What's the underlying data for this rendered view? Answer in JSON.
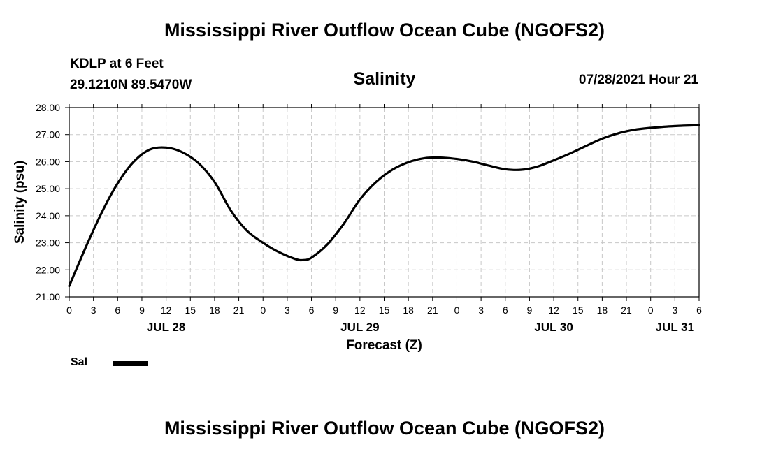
{
  "header": {
    "title": "Mississippi River Outflow Ocean Cube (NGOFS2)",
    "station_line1": "KDLP at 6 Feet",
    "station_line2": "29.1210N  89.5470W",
    "subtitle": "Salinity",
    "datetime": "07/28/2021 Hour 21"
  },
  "footer": {
    "title": "Mississippi River Outflow Ocean Cube (NGOFS2)"
  },
  "legend": {
    "label": "Sal",
    "color": "#000000"
  },
  "chart_data": {
    "type": "line",
    "title": "Salinity",
    "xlabel": "Forecast (Z)",
    "ylabel": "Salinity (psu)",
    "xlim": [
      0,
      78
    ],
    "ylim": [
      21,
      28
    ],
    "yticks": [
      "21.00",
      "22.00",
      "23.00",
      "24.00",
      "25.00",
      "26.00",
      "27.00",
      "28.00"
    ],
    "xtick_labels": [
      "0",
      "3",
      "6",
      "9",
      "12",
      "15",
      "18",
      "21",
      "0",
      "3",
      "6",
      "9",
      "12",
      "15",
      "18",
      "21",
      "0",
      "3",
      "6",
      "9",
      "12",
      "15",
      "18",
      "21",
      "0",
      "3",
      "6"
    ],
    "day_labels": [
      {
        "label": "JUL 28",
        "hour": 12
      },
      {
        "label": "JUL 29",
        "hour": 36
      },
      {
        "label": "JUL 30",
        "hour": 60
      },
      {
        "label": "JUL 31",
        "hour": 75
      }
    ],
    "grid": true,
    "series": [
      {
        "name": "Sal",
        "color": "#000000",
        "x": [
          0,
          2,
          4,
          6,
          8,
          10,
          12,
          14,
          16,
          18,
          20,
          22,
          24,
          26,
          28,
          29,
          30,
          32,
          34,
          36,
          38,
          40,
          42,
          44,
          46,
          48,
          50,
          52,
          54,
          56,
          58,
          60,
          62,
          64,
          66,
          68,
          70,
          72,
          74,
          76,
          78
        ],
        "y": [
          21.4,
          22.8,
          24.1,
          25.2,
          26.0,
          26.45,
          26.52,
          26.35,
          25.95,
          25.25,
          24.2,
          23.45,
          23.0,
          22.65,
          22.4,
          22.36,
          22.45,
          22.95,
          23.7,
          24.6,
          25.25,
          25.7,
          25.98,
          26.13,
          26.15,
          26.1,
          26.0,
          25.85,
          25.72,
          25.7,
          25.82,
          26.05,
          26.3,
          26.58,
          26.85,
          27.05,
          27.18,
          27.25,
          27.3,
          27.33,
          27.35
        ]
      }
    ]
  }
}
